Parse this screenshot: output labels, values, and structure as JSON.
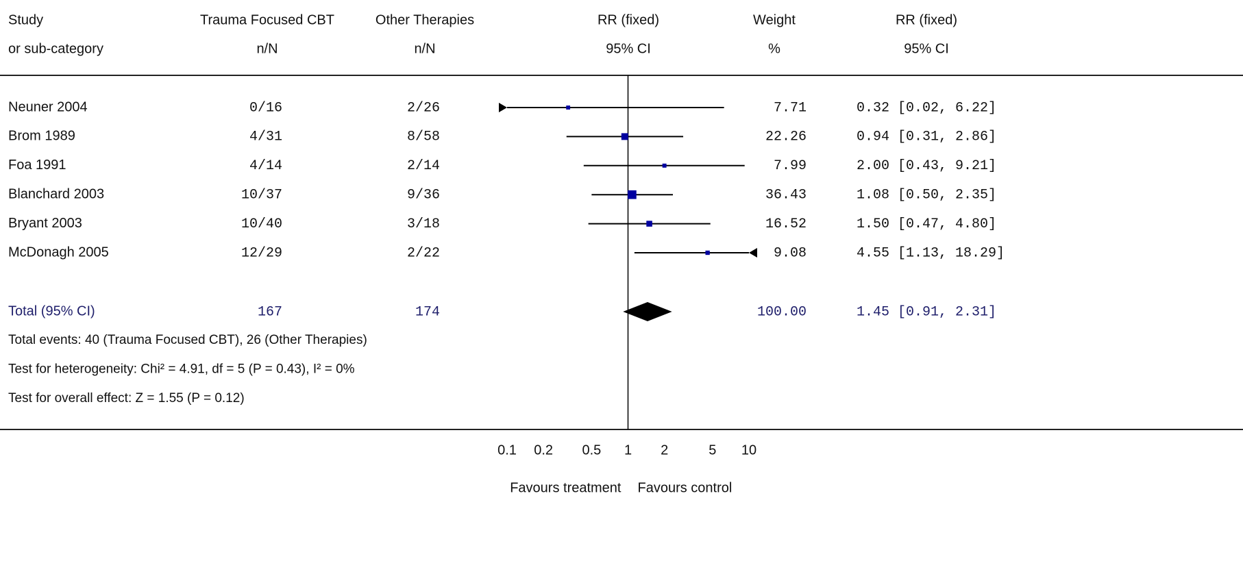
{
  "chart_data": {
    "type": "forest",
    "headers": [
      [
        "Study",
        "or sub-category"
      ],
      [
        "Trauma Focused CBT",
        "n/N"
      ],
      [
        "Other Therapies",
        "n/N"
      ],
      [
        "RR (fixed)",
        "95% CI"
      ],
      [
        "Weight",
        "%"
      ],
      [
        "RR (fixed)",
        "95% CI"
      ]
    ],
    "studies": [
      {
        "name": "Neuner 2004",
        "treatment": "0/16",
        "control": "2/26",
        "weight": 7.71,
        "rr": 0.32,
        "lower": 0.02,
        "upper": 6.22,
        "rr_label": "0.32 [0.02, 6.22]"
      },
      {
        "name": "Brom 1989",
        "treatment": "4/31",
        "control": "8/58",
        "weight": 22.26,
        "rr": 0.94,
        "lower": 0.31,
        "upper": 2.86,
        "rr_label": "0.94 [0.31, 2.86]"
      },
      {
        "name": "Foa 1991",
        "treatment": "4/14",
        "control": "2/14",
        "weight": 7.99,
        "rr": 2.0,
        "lower": 0.43,
        "upper": 9.21,
        "rr_label": "2.00 [0.43, 9.21]"
      },
      {
        "name": "Blanchard 2003",
        "treatment": "10/37",
        "control": "9/36",
        "weight": 36.43,
        "rr": 1.08,
        "lower": 0.5,
        "upper": 2.35,
        "rr_label": "1.08 [0.50, 2.35]"
      },
      {
        "name": "Bryant 2003",
        "treatment": "10/40",
        "control": "3/18",
        "weight": 16.52,
        "rr": 1.5,
        "lower": 0.47,
        "upper": 4.8,
        "rr_label": "1.50 [0.47, 4.80]"
      },
      {
        "name": "McDonagh 2005",
        "treatment": "12/29",
        "control": "2/22",
        "weight": 9.08,
        "rr": 4.55,
        "lower": 1.13,
        "upper": 18.29,
        "rr_label": "4.55 [1.13, 18.29]"
      }
    ],
    "total": {
      "name": "Total (95% CI)",
      "treatment": 167,
      "control": 174,
      "weight": 100,
      "weight_label": "100.00",
      "rr": 1.45,
      "lower": 0.91,
      "upper": 2.31,
      "rr_label": "1.45 [0.91, 2.31]"
    },
    "notes": [
      "Total events: 40 (Trauma Focused CBT), 26 (Other Therapies)",
      "Test for heterogeneity: Chi² = 4.91, df = 5 (P = 0.43), I² = 0%",
      "Test for overall effect: Z = 1.55 (P = 0.12)"
    ],
    "xscale": "log",
    "xlim": [
      0.1,
      10
    ],
    "xticks": [
      0.1,
      0.2,
      0.5,
      1,
      2,
      5,
      10
    ],
    "null_line": 1,
    "xlabels": [
      "Favours treatment",
      "Favours control"
    ],
    "marker_color": "#0000a0",
    "total_color": "#1f1f6b"
  }
}
